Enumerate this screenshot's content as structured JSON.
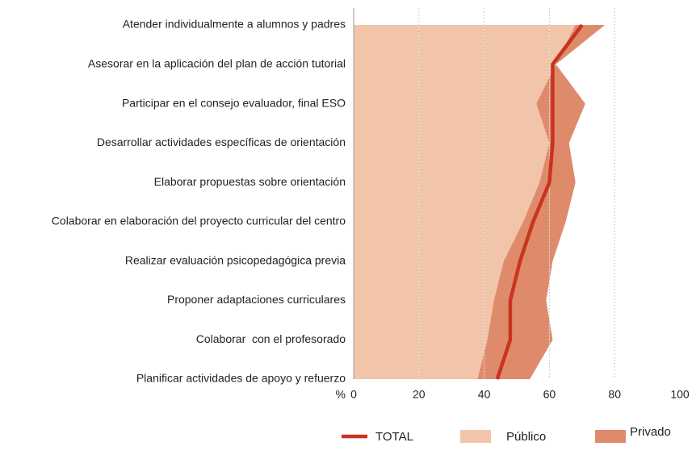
{
  "chart_data": {
    "type": "area",
    "categories": [
      "Atender individualmente a alumnos y padres",
      "Asesorar en la aplicación del plan de acción tutorial",
      "Participar en el consejo evaluador, final ESO",
      "Desarrollar actividades específicas de orientación",
      "Elaborar propuestas sobre orientación",
      "Colaborar en elaboración del proyecto curricular del centro",
      "Realizar evaluación psicopedagógica previa",
      "Proponer adaptaciones curriculares",
      "Colaborar  con el profesorado",
      "Planificar actividades de apoyo y refuerzo"
    ],
    "series": [
      {
        "name": "TOTAL",
        "color": "#c8341f",
        "values": [
          70,
          61,
          61,
          61,
          60,
          55,
          51,
          48,
          48,
          44
        ]
      },
      {
        "name": "Público",
        "color": "#f2c5aa",
        "values": [
          68,
          62,
          56,
          60,
          57,
          52,
          46,
          43,
          41,
          38
        ]
      },
      {
        "name": "Privado",
        "color": "#e08a6c",
        "values": [
          77,
          62,
          71,
          66,
          68,
          65,
          61,
          59,
          61,
          54
        ]
      }
    ],
    "x_label": "%",
    "xlim": [
      0,
      100
    ],
    "xticks": [
      0,
      20,
      40,
      60,
      80,
      100
    ],
    "grid": true
  }
}
